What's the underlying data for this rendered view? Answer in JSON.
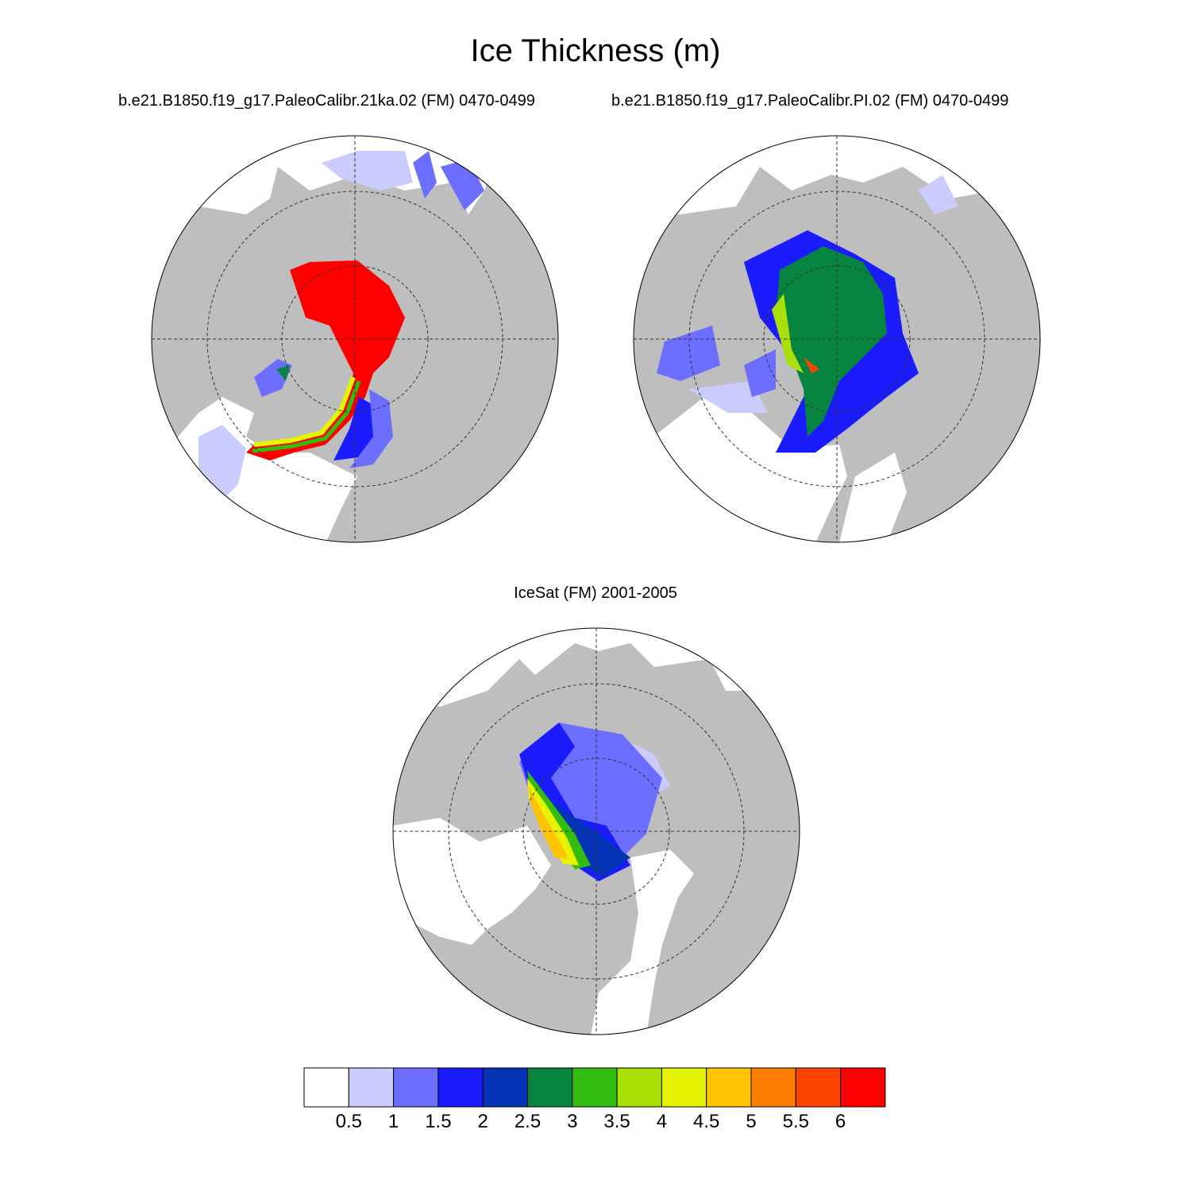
{
  "title": "Ice Thickness (m)",
  "panels": [
    {
      "id": "left",
      "title": "b.e21.B1850.f19_g17.PaleoCalibr.21ka.02 (FM) 0470-0499"
    },
    {
      "id": "right",
      "title": "b.e21.B1850.f19_g17.PaleoCalibr.PI.02 (FM) 0470-0499"
    },
    {
      "id": "bottom",
      "title": "IceSat (FM) 2001-2005"
    }
  ],
  "colors": {
    "land": "#bebebe",
    "ocean_open": "#ffffff",
    "levels": [
      "#ffffff",
      "#cbccfe",
      "#6b6efe",
      "#1a1cfe",
      "#0432b4",
      "#07843f",
      "#33bd0f",
      "#a9e006",
      "#e6f401",
      "#fec404",
      "#fe7f00",
      "#fe4401",
      "#fe0000"
    ]
  },
  "colorbar": {
    "labels": [
      "0.5",
      "1",
      "1.5",
      "2",
      "2.5",
      "3",
      "3.5",
      "4",
      "4.5",
      "5",
      "5.5",
      "6"
    ]
  }
}
